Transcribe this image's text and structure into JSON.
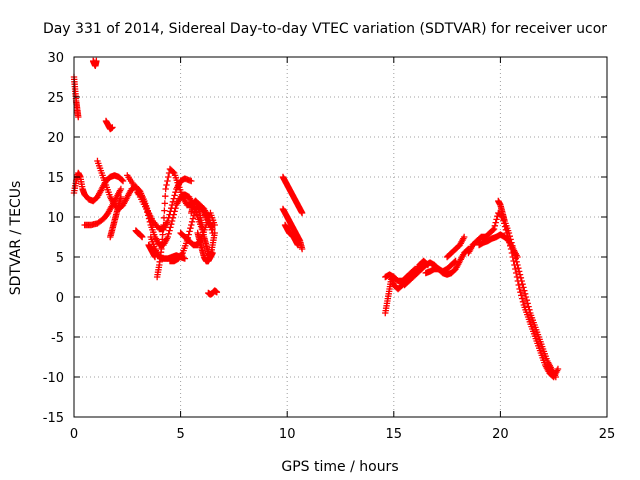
{
  "chart_data": {
    "type": "scatter",
    "title": "Day 331 of 2014, Sidereal Day-to-day VTEC variation (SDTVAR) for receiver ucor",
    "xlabel": "GPS time / hours",
    "ylabel": "SDTVAR / TECUs",
    "xlim": [
      0,
      25
    ],
    "ylim": [
      -15,
      30
    ],
    "xticks": [
      0,
      5,
      10,
      15,
      20,
      25
    ],
    "yticks": [
      -15,
      -10,
      -5,
      0,
      5,
      10,
      15,
      20,
      25,
      30
    ],
    "grid": true,
    "marker": "+",
    "color": "#ff0000",
    "series": [
      {
        "name": "s1",
        "x": [
          0.0,
          0.1,
          0.2,
          0.3,
          0.4,
          0.5,
          0.7,
          0.9,
          1.1,
          1.3,
          1.5,
          1.7,
          1.9,
          2.1,
          2.3
        ],
        "y": [
          13.0,
          14.5,
          15.5,
          15.0,
          13.5,
          12.8,
          12.2,
          12.0,
          12.5,
          13.5,
          14.5,
          15.0,
          15.2,
          15.0,
          14.5
        ]
      },
      {
        "name": "s2",
        "x": [
          0.0,
          0.05,
          0.1,
          0.15,
          0.2
        ],
        "y": [
          27.5,
          26.0,
          24.5,
          23.5,
          22.5
        ]
      },
      {
        "name": "s3",
        "x": [
          0.9,
          0.95,
          1.0,
          1.05
        ],
        "y": [
          29.5,
          29.2,
          28.9,
          29.5
        ]
      },
      {
        "name": "s4",
        "x": [
          1.5,
          1.6,
          1.7,
          1.8
        ],
        "y": [
          22.0,
          21.5,
          21.0,
          21.2
        ]
      },
      {
        "name": "s5",
        "x": [
          1.1,
          1.3,
          1.5,
          1.7,
          1.9,
          2.1,
          2.3,
          2.5,
          2.7,
          2.9,
          3.1,
          3.3,
          3.5,
          3.7
        ],
        "y": [
          17.0,
          15.5,
          14.0,
          12.5,
          11.5,
          11.0,
          11.5,
          12.5,
          13.5,
          13.8,
          13.2,
          12.0,
          10.5,
          9.0
        ]
      },
      {
        "name": "s6",
        "x": [
          0.5,
          0.8,
          1.1,
          1.4,
          1.6,
          1.8,
          2.0,
          2.2
        ],
        "y": [
          9.0,
          9.0,
          9.2,
          9.8,
          10.5,
          11.5,
          12.5,
          13.5
        ]
      },
      {
        "name": "s7",
        "x": [
          1.7,
          1.8,
          1.9,
          2.0,
          2.1,
          2.2
        ],
        "y": [
          7.5,
          8.5,
          9.5,
          10.5,
          11.5,
          12.5
        ]
      },
      {
        "name": "s8",
        "x": [
          2.5,
          2.8,
          3.1,
          3.4,
          3.7,
          4.0,
          4.2,
          4.4,
          4.6,
          4.8,
          5.0,
          5.2,
          5.5
        ],
        "y": [
          15.2,
          14.0,
          12.5,
          11.0,
          9.5,
          8.5,
          8.5,
          9.5,
          11.5,
          13.5,
          14.5,
          14.8,
          14.5
        ]
      },
      {
        "name": "s9",
        "x": [
          3.0,
          3.2,
          3.4,
          3.6,
          3.8,
          4.0,
          4.2,
          4.4,
          4.6,
          4.8,
          5.0,
          5.2,
          5.4,
          5.6,
          5.8,
          6.0
        ],
        "y": [
          13.0,
          12.5,
          11.0,
          9.0,
          7.5,
          6.5,
          6.5,
          7.5,
          9.5,
          11.5,
          12.5,
          12.8,
          12.5,
          11.5,
          10.0,
          8.5
        ]
      },
      {
        "name": "s10",
        "x": [
          3.6,
          3.8,
          4.0,
          4.2,
          4.4,
          4.6,
          4.8,
          5.0,
          5.2
        ],
        "y": [
          7.5,
          6.0,
          5.0,
          4.8,
          4.8,
          5.0,
          5.2,
          5.0,
          4.8
        ]
      },
      {
        "name": "s11",
        "x": [
          3.9,
          4.0,
          4.1,
          4.2,
          4.3,
          4.5,
          4.7,
          4.9,
          5.1,
          5.3,
          5.5,
          5.7,
          5.9,
          6.1,
          6.3,
          6.5
        ],
        "y": [
          2.5,
          4.0,
          6.0,
          9.0,
          13.5,
          16.0,
          15.5,
          14.0,
          12.5,
          11.5,
          11.5,
          12.0,
          11.5,
          10.5,
          9.5,
          8.5
        ]
      },
      {
        "name": "s12",
        "x": [
          4.5,
          4.7,
          4.9,
          5.1,
          5.3,
          5.5,
          5.7,
          5.9,
          6.1,
          6.3,
          6.5
        ],
        "y": [
          4.5,
          4.5,
          4.8,
          5.5,
          7.0,
          9.0,
          11.0,
          11.5,
          11.0,
          10.0,
          8.0
        ]
      },
      {
        "name": "s13",
        "x": [
          5.0,
          5.2,
          5.4,
          5.6,
          5.8,
          6.0,
          6.2,
          6.4,
          6.6
        ],
        "y": [
          8.0,
          7.5,
          7.0,
          6.5,
          6.5,
          7.5,
          9.0,
          10.5,
          9.0
        ]
      },
      {
        "name": "s14",
        "x": [
          5.5,
          5.6,
          5.7,
          5.8,
          5.9,
          6.0,
          6.1,
          6.2,
          6.3,
          6.4,
          6.5
        ],
        "y": [
          10.5,
          11.5,
          12.0,
          11.5,
          10.5,
          9.0,
          7.5,
          6.5,
          5.5,
          5.0,
          5.5
        ]
      },
      {
        "name": "s15",
        "x": [
          5.8,
          5.9,
          6.0,
          6.1,
          6.2,
          6.3,
          6.4,
          6.5,
          6.6
        ],
        "y": [
          8.0,
          7.0,
          6.0,
          5.0,
          4.5,
          4.5,
          5.0,
          6.5,
          8.0
        ]
      },
      {
        "name": "s16",
        "x": [
          2.9,
          3.0,
          3.1,
          3.2
        ],
        "y": [
          8.3,
          8.0,
          7.8,
          7.5
        ]
      },
      {
        "name": "s17",
        "x": [
          3.5,
          3.6,
          3.7,
          3.8
        ],
        "y": [
          6.5,
          6.0,
          5.5,
          5.0
        ]
      },
      {
        "name": "s18",
        "x": [
          6.3,
          6.4,
          6.5,
          6.6,
          6.7
        ],
        "y": [
          0.5,
          0.3,
          0.5,
          0.8,
          0.6
        ]
      },
      {
        "name": "s19",
        "x": [
          9.8,
          9.9,
          10.0,
          10.1,
          10.2,
          10.3,
          10.4,
          10.5,
          10.6,
          10.7
        ],
        "y": [
          15.0,
          14.5,
          14.0,
          13.5,
          13.0,
          12.5,
          12.0,
          11.5,
          11.0,
          10.5
        ]
      },
      {
        "name": "s20",
        "x": [
          9.8,
          9.9,
          10.0,
          10.1,
          10.2,
          10.3,
          10.4,
          10.5,
          10.6,
          10.7
        ],
        "y": [
          11.0,
          10.5,
          10.0,
          9.5,
          9.0,
          8.5,
          8.0,
          7.5,
          7.0,
          6.0
        ]
      },
      {
        "name": "s21",
        "x": [
          9.9,
          10.0,
          10.1,
          10.2,
          10.3,
          10.4,
          10.5
        ],
        "y": [
          9.0,
          8.5,
          8.0,
          7.8,
          7.5,
          7.0,
          6.5
        ]
      },
      {
        "name": "s22",
        "x": [
          14.6,
          14.7,
          14.8,
          14.9,
          15.0,
          15.2,
          15.4,
          15.6,
          15.8,
          16.0,
          16.2,
          16.4,
          16.6
        ],
        "y": [
          -2.0,
          -0.5,
          1.0,
          2.5,
          1.5,
          1.0,
          1.5,
          2.0,
          2.5,
          3.0,
          4.0,
          4.5,
          4.0
        ]
      },
      {
        "name": "s23",
        "x": [
          14.6,
          14.8,
          15.0,
          15.2,
          15.4,
          15.6,
          15.8,
          16.0
        ],
        "y": [
          2.5,
          2.8,
          2.5,
          2.0,
          2.0,
          2.5,
          3.0,
          3.5
        ]
      },
      {
        "name": "s24",
        "x": [
          15.5,
          15.7,
          15.9,
          16.1,
          16.3,
          16.5,
          16.7,
          16.9,
          17.1,
          17.3,
          17.5,
          17.7,
          17.9
        ],
        "y": [
          1.5,
          2.0,
          2.5,
          3.0,
          3.5,
          4.0,
          4.3,
          4.0,
          3.5,
          3.2,
          3.5,
          4.0,
          4.5
        ]
      },
      {
        "name": "s25",
        "x": [
          16.5,
          16.7,
          16.9,
          17.1,
          17.3,
          17.5,
          17.7,
          17.9,
          18.1,
          18.3,
          18.5
        ],
        "y": [
          3.0,
          3.2,
          3.5,
          3.5,
          3.0,
          2.8,
          3.0,
          3.5,
          4.5,
          5.5,
          6.0
        ]
      },
      {
        "name": "s26",
        "x": [
          17.5,
          17.7,
          17.9,
          18.1,
          18.3
        ],
        "y": [
          5.0,
          5.5,
          6.0,
          6.5,
          7.5
        ]
      },
      {
        "name": "s27",
        "x": [
          18.5,
          18.7,
          18.9,
          19.1,
          19.3,
          19.5,
          19.7,
          19.9,
          20.1,
          20.3,
          20.5,
          20.7,
          20.9,
          21.1,
          21.3,
          21.5,
          21.7,
          21.9,
          22.1,
          22.3,
          22.5,
          22.7
        ],
        "y": [
          5.5,
          6.5,
          7.0,
          7.5,
          7.5,
          8.0,
          8.5,
          10.5,
          10.0,
          8.0,
          6.0,
          3.5,
          1.0,
          -1.0,
          -2.5,
          -4.0,
          -5.5,
          -7.0,
          -8.5,
          -9.5,
          -10.0,
          -9.0
        ]
      },
      {
        "name": "s28",
        "x": [
          19.9,
          20.0,
          20.1,
          20.2,
          20.4,
          20.6,
          20.8,
          21.0,
          21.2,
          21.4,
          21.6,
          21.8,
          22.0,
          22.2,
          22.4,
          22.6
        ],
        "y": [
          12.0,
          11.5,
          10.5,
          9.5,
          8.0,
          6.0,
          4.0,
          2.0,
          0.0,
          -2.0,
          -3.5,
          -5.0,
          -6.5,
          -8.0,
          -9.0,
          -10.0
        ]
      },
      {
        "name": "s29",
        "x": [
          19.0,
          19.2,
          19.4,
          19.6,
          19.8,
          20.0,
          20.2,
          20.4,
          20.6,
          20.8
        ],
        "y": [
          6.5,
          6.8,
          7.0,
          7.3,
          7.5,
          7.8,
          7.5,
          7.0,
          6.0,
          5.0
        ]
      }
    ]
  }
}
